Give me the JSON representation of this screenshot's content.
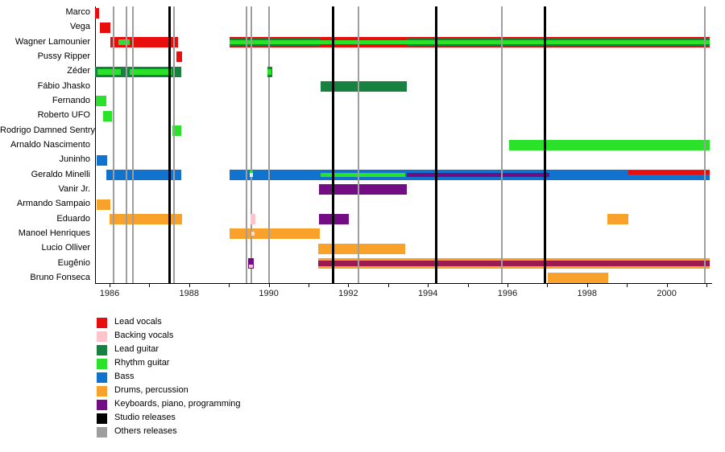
{
  "chart_data": {
    "type": "timeline",
    "description": "Band members timeline (gantt-style) with instrument roles and release markers",
    "x_axis": {
      "label_years": [
        1986,
        1988,
        1990,
        1992,
        1994,
        1996,
        1998,
        2000
      ],
      "minor_tick_start": 1986,
      "minor_tick_end": 2001,
      "range": [
        1985.63,
        2001.13
      ]
    },
    "colors": {
      "red": "#E90E0E",
      "pink": "#FFC3CB",
      "darkgreen": "#178140",
      "green": "#2BE22B",
      "blue": "#1273CF",
      "orange": "#F8A12B",
      "purple": "#720D84",
      "maroon": "#9C1A50",
      "white": "#EDEDED",
      "lightpink": "#FFD9DE",
      "black": "#000000",
      "gray": "#9E9E9E"
    },
    "legend": [
      {
        "label": "Lead vocals",
        "color": "red"
      },
      {
        "label": "Backing vocals",
        "color": "pink"
      },
      {
        "label": "Lead guitar",
        "color": "darkgreen"
      },
      {
        "label": "Rhythm guitar",
        "color": "green"
      },
      {
        "label": "Bass",
        "color": "blue"
      },
      {
        "label": "Drums, percussion",
        "color": "orange"
      },
      {
        "label": "Keyboards, piano, programming",
        "color": "purple"
      },
      {
        "label": "Studio releases",
        "color": "black"
      },
      {
        "label": "Others releases",
        "color": "gray"
      }
    ],
    "release_lines": [
      {
        "year": 1986.1,
        "type": "others"
      },
      {
        "year": 1986.43,
        "type": "others"
      },
      {
        "year": 1986.59,
        "type": "others"
      },
      {
        "year": 1987.5,
        "type": "studio"
      },
      {
        "year": 1987.62,
        "type": "others"
      },
      {
        "year": 1989.45,
        "type": "others"
      },
      {
        "year": 1989.56,
        "type": "others"
      },
      {
        "year": 1990.0,
        "type": "others"
      },
      {
        "year": 1991.62,
        "type": "studio"
      },
      {
        "year": 1992.25,
        "type": "others"
      },
      {
        "year": 1994.2,
        "type": "studio"
      },
      {
        "year": 1995.86,
        "type": "others"
      },
      {
        "year": 1996.95,
        "type": "studio"
      },
      {
        "year": 2000.96,
        "type": "others"
      }
    ],
    "members": [
      {
        "name": "Marco",
        "segments": [
          {
            "start": 1985.64,
            "end": 1985.74,
            "color": "red",
            "band": "full"
          }
        ]
      },
      {
        "name": "Vega",
        "segments": [
          {
            "start": 1985.76,
            "end": 1986.02,
            "color": "red",
            "band": "full"
          }
        ]
      },
      {
        "name": "Wagner Lamounier",
        "segments": [
          {
            "start": 1986.02,
            "end": 1987.72,
            "color": "red",
            "band": "full"
          },
          {
            "start": 1986.22,
            "end": 1986.5,
            "color": "green",
            "band": "center-wide"
          },
          {
            "start": 1989.02,
            "end": 2001.08,
            "color": "red",
            "band": "full"
          },
          {
            "start": 1989.02,
            "end": 1991.3,
            "color": "darkgreen",
            "band": "inner"
          },
          {
            "start": 1993.47,
            "end": 2001.08,
            "color": "darkgreen",
            "band": "inner"
          },
          {
            "start": 1989.02,
            "end": 2001.08,
            "color": "green",
            "band": "center"
          }
        ]
      },
      {
        "name": "Pussy Ripper",
        "segments": [
          {
            "start": 1987.68,
            "end": 1987.82,
            "color": "red",
            "band": "full"
          }
        ]
      },
      {
        "name": "Zéder",
        "segments": [
          {
            "start": 1985.64,
            "end": 1987.8,
            "color": "darkgreen",
            "band": "full"
          },
          {
            "start": 1985.7,
            "end": 1986.28,
            "color": "green",
            "band": "center-wide"
          },
          {
            "start": 1986.5,
            "end": 1987.56,
            "color": "green",
            "band": "center-wide"
          },
          {
            "start": 1989.96,
            "end": 1990.08,
            "color": "darkgreen",
            "band": "full",
            "front": true
          },
          {
            "start": 1989.97,
            "end": 1990.07,
            "color": "green",
            "band": "center-wide",
            "front": true
          }
        ]
      },
      {
        "name": "Fábio Jhasko",
        "segments": [
          {
            "start": 1991.3,
            "end": 1993.47,
            "color": "darkgreen",
            "band": "full"
          }
        ]
      },
      {
        "name": "Fernando",
        "segments": [
          {
            "start": 1985.66,
            "end": 1985.92,
            "color": "green",
            "band": "full"
          }
        ]
      },
      {
        "name": "Roberto UFO",
        "segments": [
          {
            "start": 1985.84,
            "end": 1986.06,
            "color": "green",
            "band": "full"
          }
        ]
      },
      {
        "name": "Rodrigo Damned Sentry",
        "segments": [
          {
            "start": 1987.58,
            "end": 1987.8,
            "color": "green",
            "band": "full"
          }
        ]
      },
      {
        "name": "Arnaldo Nascimento",
        "segments": [
          {
            "start": 1996.04,
            "end": 2001.08,
            "color": "green",
            "band": "full"
          }
        ]
      },
      {
        "name": "Juninho",
        "segments": [
          {
            "start": 1985.68,
            "end": 1985.94,
            "color": "blue",
            "band": "full"
          }
        ]
      },
      {
        "name": "Geraldo Minelli",
        "segments": [
          {
            "start": 1985.92,
            "end": 1987.8,
            "color": "blue",
            "band": "full"
          },
          {
            "start": 1989.02,
            "end": 2001.08,
            "color": "blue",
            "band": "full"
          },
          {
            "start": 1989.53,
            "end": 1989.61,
            "color": "green",
            "band": "upper",
            "front": true
          },
          {
            "start": 1989.53,
            "end": 1989.61,
            "color": "white",
            "band": "center",
            "front": true
          },
          {
            "start": 1991.3,
            "end": 1993.43,
            "color": "green",
            "band": "center"
          },
          {
            "start": 1993.47,
            "end": 1997.05,
            "color": "purple",
            "band": "center"
          },
          {
            "start": 1999.04,
            "end": 2001.08,
            "color": "red",
            "band": "upper"
          }
        ]
      },
      {
        "name": "Vanir Jr.",
        "segments": [
          {
            "start": 1991.26,
            "end": 1993.47,
            "color": "purple",
            "band": "full"
          }
        ]
      },
      {
        "name": "Armando Sampaio",
        "segments": [
          {
            "start": 1985.68,
            "end": 1986.02,
            "color": "orange",
            "band": "full"
          }
        ]
      },
      {
        "name": "Eduardo",
        "segments": [
          {
            "start": 1986.0,
            "end": 1987.82,
            "color": "orange",
            "band": "full"
          },
          {
            "start": 1989.54,
            "end": 1989.66,
            "color": "pink",
            "band": "full",
            "front": true
          },
          {
            "start": 1991.26,
            "end": 1992.01,
            "color": "purple",
            "band": "full"
          },
          {
            "start": 1998.51,
            "end": 1999.04,
            "color": "orange",
            "band": "full"
          }
        ]
      },
      {
        "name": "Manoel Henriques",
        "segments": [
          {
            "start": 1989.02,
            "end": 1991.28,
            "color": "orange",
            "band": "full"
          },
          {
            "start": 1989.56,
            "end": 1989.64,
            "color": "lightpink",
            "band": "center",
            "front": true
          }
        ]
      },
      {
        "name": "Lucio Olliver",
        "segments": [
          {
            "start": 1991.24,
            "end": 1993.43,
            "color": "orange",
            "band": "full"
          }
        ]
      },
      {
        "name": "Eugênio",
        "segments": [
          {
            "start": 1989.48,
            "end": 1989.62,
            "color": "purple",
            "band": "full",
            "front": true
          },
          {
            "start": 1989.5,
            "end": 1989.6,
            "color": "pink",
            "band": "lower",
            "front": true
          },
          {
            "start": 1991.24,
            "end": 2001.08,
            "color": "orange",
            "band": "full"
          },
          {
            "start": 1991.24,
            "end": 2001.08,
            "color": "maroon",
            "band": "center-wide"
          }
        ]
      },
      {
        "name": "Bruno Fonseca",
        "segments": [
          {
            "start": 1997.01,
            "end": 1998.53,
            "color": "orange",
            "band": "full"
          }
        ]
      }
    ]
  }
}
